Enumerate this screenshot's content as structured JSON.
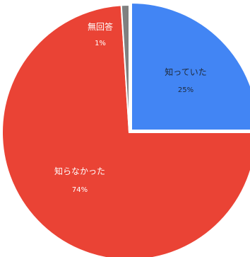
{
  "chart_data": {
    "type": "pie",
    "slices": [
      {
        "label": "知っていた",
        "value": 25,
        "value_label": "25%",
        "color": "#4285f4",
        "text_color": "#1f2a3a"
      },
      {
        "label": "知らなかった",
        "value": 74,
        "value_label": "74%",
        "color": "#ea4335",
        "text_color": "#ffffff"
      },
      {
        "label": "無回答",
        "value": 1,
        "value_label": "1%",
        "color": "#808080",
        "text_color": "#ffffff"
      }
    ],
    "start": "12 o'clock",
    "direction": "clockwise",
    "slice_border_color": "#ffffff"
  }
}
